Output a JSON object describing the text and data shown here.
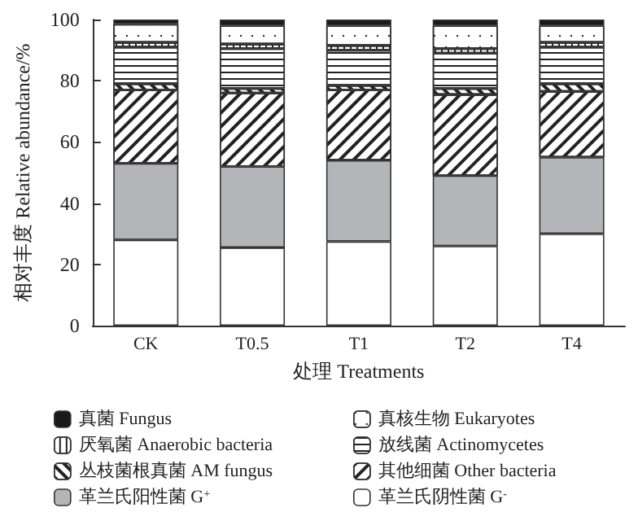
{
  "chart_data": {
    "type": "bar",
    "stacked": true,
    "xlabel": "处理 Treatments",
    "ylabel": "相对丰度 Relative abundance/%",
    "categories": [
      "CK",
      "T0.5",
      "T1",
      "T2",
      "T4"
    ],
    "ylim": [
      0,
      100
    ],
    "yticks": [
      0,
      20,
      40,
      60,
      80,
      100
    ],
    "grid": false,
    "legend": "bottom",
    "series": [
      {
        "name": "革兰氏阴性菌 G$^{-}$",
        "color": "#ffffff",
        "values": [
          28,
          25.5,
          27.5,
          26,
          30
        ]
      },
      {
        "name": "革兰氏阳性菌 G$^{+}$",
        "color": "#b4b5b8",
        "values": [
          25,
          26.5,
          26.5,
          23,
          25
        ]
      },
      {
        "name": "其他细菌 Other bacteria",
        "color": "#ffffff",
        "values": [
          24,
          24,
          23,
          26.5,
          21.5
        ]
      },
      {
        "name": "丛枝菌根真菌 AM fungus",
        "color": "#ffffff",
        "values": [
          2,
          1.5,
          1.5,
          2,
          2.5
        ]
      },
      {
        "name": "放线菌 Actinomycetes",
        "color": "#ffffff",
        "values": [
          12,
          13,
          11.5,
          11.5,
          12
        ]
      },
      {
        "name": "厌氧菌 Anaerobic bacteria",
        "color": "#ffffff",
        "values": [
          1.5,
          1.5,
          1.5,
          1.5,
          1.5
        ]
      },
      {
        "name": "真核生物 Eukaryotes",
        "color": "#ffffff",
        "values": [
          6,
          6,
          6.5,
          7.5,
          5.5
        ]
      },
      {
        "name": "真菌 Fungus",
        "color": "#1a1a1a",
        "values": [
          1.5,
          2,
          2,
          2,
          2
        ]
      }
    ]
  }
}
